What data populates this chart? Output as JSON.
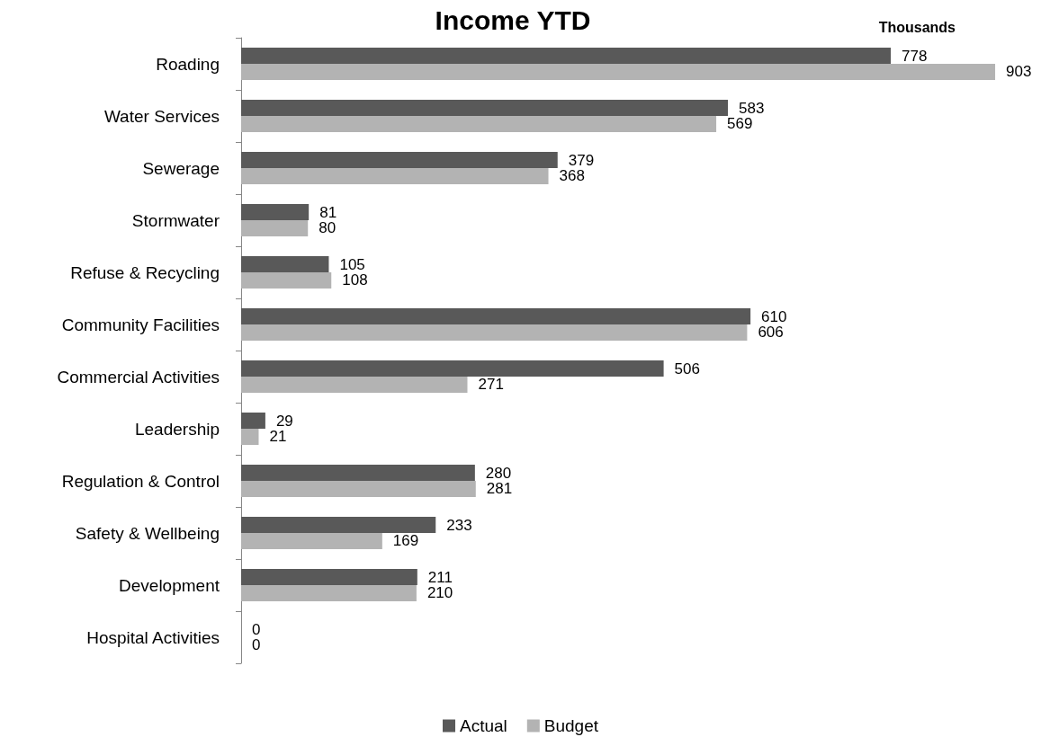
{
  "chart_data": {
    "type": "bar",
    "title": "Income YTD",
    "xlabel": "Thousands",
    "orientation": "horizontal",
    "categories": [
      "Roading",
      "Water Services",
      "Sewerage",
      "Stormwater",
      "Refuse & Recycling",
      "Community Facilities",
      "Commercial Activities",
      "Leadership",
      "Regulation & Control",
      "Safety & Wellbeing",
      "Development",
      "Hospital Activities"
    ],
    "series": [
      {
        "name": "Actual",
        "color": "#595959",
        "values": [
          778,
          583,
          379,
          81,
          105,
          610,
          506,
          29,
          280,
          233,
          211,
          0
        ]
      },
      {
        "name": "Budget",
        "color": "#b3b3b3",
        "values": [
          903,
          569,
          368,
          80,
          108,
          606,
          271,
          21,
          281,
          169,
          210,
          0
        ]
      }
    ],
    "data_labels": true,
    "legend": "bottom",
    "grid": false
  }
}
